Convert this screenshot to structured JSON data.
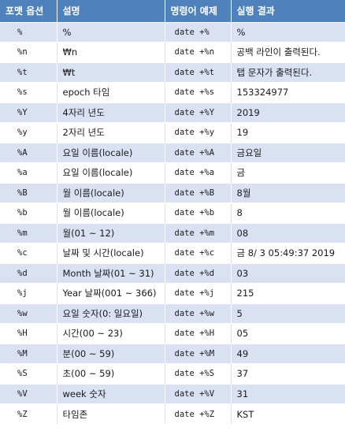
{
  "headers": {
    "format_option": "포맷 옵션",
    "description": "설명",
    "command_example": "명령어 예제",
    "result": "실행 결과"
  },
  "rows": [
    {
      "format": "%",
      "description": "%",
      "command": "date +%",
      "result": "%"
    },
    {
      "format": "%n",
      "description": "₩n",
      "command": "date +%n",
      "result": "공백 라인이 출력된다."
    },
    {
      "format": "%t",
      "description": "₩t",
      "command": "date +%t",
      "result": "탭 문자가 출력된다."
    },
    {
      "format": "%s",
      "description": "epoch 타임",
      "command": "date +%s",
      "result": "153324977"
    },
    {
      "format": "%Y",
      "description": "4자리 년도",
      "command": "date +%Y",
      "result": "2019"
    },
    {
      "format": "%y",
      "description": "2자리 년도",
      "command": "date +%y",
      "result": "19"
    },
    {
      "format": "%A",
      "description": "요일 이름(locale)",
      "command": "date +%A",
      "result": "금요일"
    },
    {
      "format": "%a",
      "description": "요일 이름(locale)",
      "command": "date +%a",
      "result": "금"
    },
    {
      "format": "%B",
      "description": "월 이름(locale)",
      "command": "date +%B",
      "result": "8월"
    },
    {
      "format": "%b",
      "description": "월 이름(locale)",
      "command": "date +%b",
      "result": "8"
    },
    {
      "format": "%m",
      "description": "월(01 ~ 12)",
      "command": "date +%m",
      "result": "08"
    },
    {
      "format": "%c",
      "description": "날짜 및 시간(locale)",
      "command": "date +%c",
      "result": "금 8/ 3 05:49:37 2019"
    },
    {
      "format": "%d",
      "description": "Month 날짜(01 ~ 31)",
      "command": "date +%d",
      "result": "03"
    },
    {
      "format": "%j",
      "description": "Year 날짜(001 ~ 366)",
      "command": "date +%j",
      "result": "215"
    },
    {
      "format": "%w",
      "description": "요일 숫자(0: 일요일)",
      "command": "date +%w",
      "result": "5"
    },
    {
      "format": "%H",
      "description": "시간(00 ~ 23)",
      "command": "date +%H",
      "result": "05"
    },
    {
      "format": "%M",
      "description": "분(00 ~ 59)",
      "command": "date +%M",
      "result": "49"
    },
    {
      "format": "%S",
      "description": "초(00 ~ 59)",
      "command": "date +%S",
      "result": "37"
    },
    {
      "format": "%V",
      "description": "week 숫자",
      "command": "date +%V",
      "result": "31"
    },
    {
      "format": "%Z",
      "description": "타임존",
      "command": "date +%Z",
      "result": "KST"
    }
  ],
  "colors": {
    "header_bg": "#4f81bd",
    "header_text": "#ffffff",
    "band_row": "#d9e1f2",
    "plain_row": "#ffffff"
  }
}
